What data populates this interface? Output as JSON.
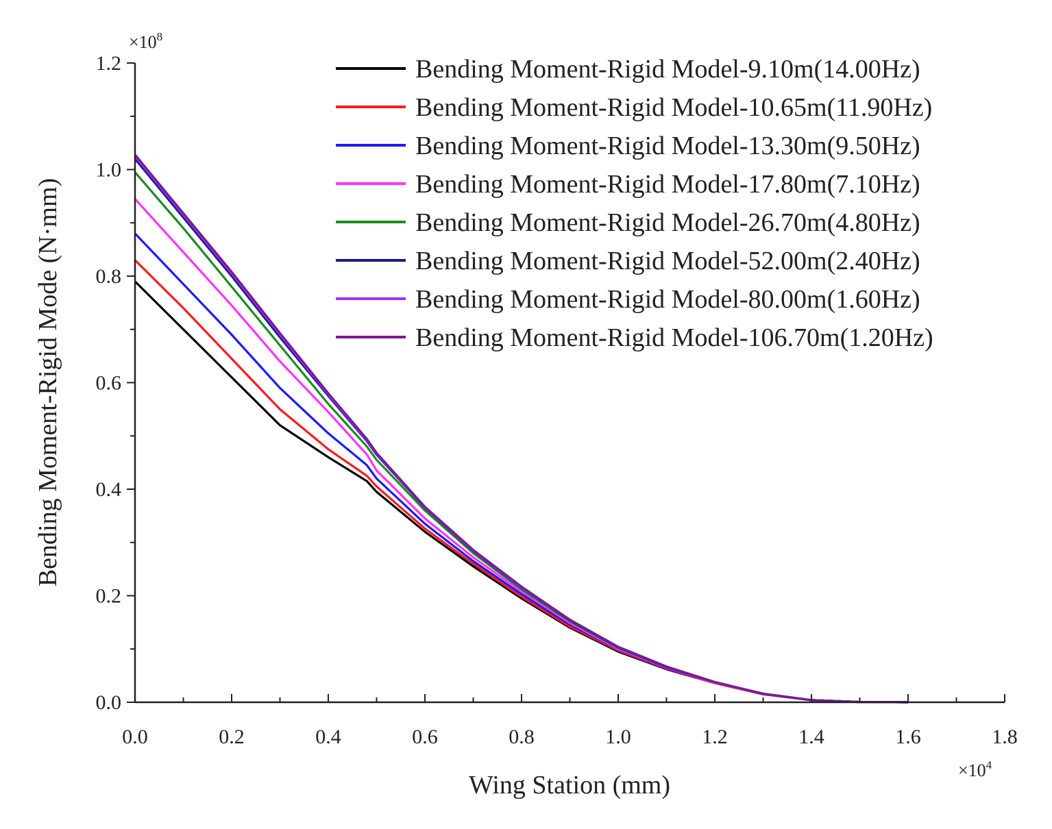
{
  "chart_data": {
    "type": "line",
    "xlabel": "Wing Station (mm)",
    "ylabel": "Bending Moment-Rigid Mode (N·mm)",
    "x_multiplier": {
      "base": "×10",
      "exp": "4"
    },
    "y_multiplier": {
      "base": "×10",
      "exp": "8"
    },
    "xlim": [
      0,
      1.8
    ],
    "ylim": [
      0,
      1.2
    ],
    "x_ticks": [
      "0.0",
      "0.2",
      "0.4",
      "0.6",
      "0.8",
      "1.0",
      "1.2",
      "1.4",
      "1.6",
      "1.8"
    ],
    "y_ticks": [
      "0.0",
      "0.2",
      "0.4",
      "0.6",
      "0.8",
      "1.0",
      "1.2"
    ],
    "legend_position": "top-right",
    "x": [
      0,
      0.1,
      0.2,
      0.3,
      0.4,
      0.48,
      0.5,
      0.6,
      0.7,
      0.8,
      0.9,
      1.0,
      1.1,
      1.2,
      1.3,
      1.4,
      1.5,
      1.6
    ],
    "series": [
      {
        "name": "Bending Moment-Rigid Model-9.10m(14.00Hz)",
        "color": "#000000",
        "values": [
          0.79,
          0.7,
          0.61,
          0.52,
          0.46,
          0.415,
          0.395,
          0.32,
          0.255,
          0.195,
          0.14,
          0.095,
          0.062,
          0.036,
          0.015,
          0.004,
          0.0005,
          0
        ]
      },
      {
        "name": "Bending Moment-Rigid Model-10.65m(11.90Hz)",
        "color": "#ff1a1a",
        "values": [
          0.83,
          0.74,
          0.645,
          0.55,
          0.475,
          0.425,
          0.405,
          0.326,
          0.26,
          0.198,
          0.142,
          0.097,
          0.063,
          0.036,
          0.015,
          0.004,
          0.0005,
          0
        ]
      },
      {
        "name": "Bending Moment-Rigid Model-13.30m(9.50Hz)",
        "color": "#1a1aff",
        "values": [
          0.88,
          0.785,
          0.69,
          0.59,
          0.505,
          0.445,
          0.42,
          0.335,
          0.265,
          0.203,
          0.146,
          0.099,
          0.064,
          0.037,
          0.016,
          0.004,
          0.0005,
          0
        ]
      },
      {
        "name": "Bending Moment-Rigid Model-17.80m(7.10Hz)",
        "color": "#ff33ff",
        "values": [
          0.945,
          0.845,
          0.745,
          0.64,
          0.545,
          0.465,
          0.435,
          0.345,
          0.272,
          0.208,
          0.149,
          0.1,
          0.065,
          0.037,
          0.016,
          0.004,
          0.0005,
          0
        ]
      },
      {
        "name": "Bending Moment-Rigid Model-26.70m(4.80Hz)",
        "color": "#1e8b22",
        "values": [
          0.995,
          0.89,
          0.78,
          0.67,
          0.56,
          0.48,
          0.455,
          0.36,
          0.28,
          0.212,
          0.152,
          0.102,
          0.066,
          0.038,
          0.016,
          0.004,
          0.0005,
          0
        ]
      },
      {
        "name": "Bending Moment-Rigid Model-52.00m(2.40Hz)",
        "color": "#1a1a88",
        "values": [
          1.02,
          0.91,
          0.8,
          0.685,
          0.575,
          0.49,
          0.465,
          0.365,
          0.284,
          0.215,
          0.154,
          0.103,
          0.066,
          0.038,
          0.016,
          0.004,
          0.0005,
          0
        ]
      },
      {
        "name": "Bending Moment-Rigid Model-80.00m(1.60Hz)",
        "color": "#9933ff",
        "values": [
          1.025,
          0.915,
          0.805,
          0.69,
          0.578,
          0.492,
          0.467,
          0.366,
          0.285,
          0.216,
          0.155,
          0.104,
          0.067,
          0.038,
          0.016,
          0.004,
          0.0005,
          0
        ]
      },
      {
        "name": "Bending Moment-Rigid Model-106.70m(1.20Hz)",
        "color": "#7a1a99",
        "values": [
          1.028,
          0.918,
          0.808,
          0.693,
          0.58,
          0.494,
          0.468,
          0.367,
          0.286,
          0.217,
          0.155,
          0.104,
          0.067,
          0.038,
          0.016,
          0.004,
          0.0005,
          0
        ]
      }
    ]
  }
}
